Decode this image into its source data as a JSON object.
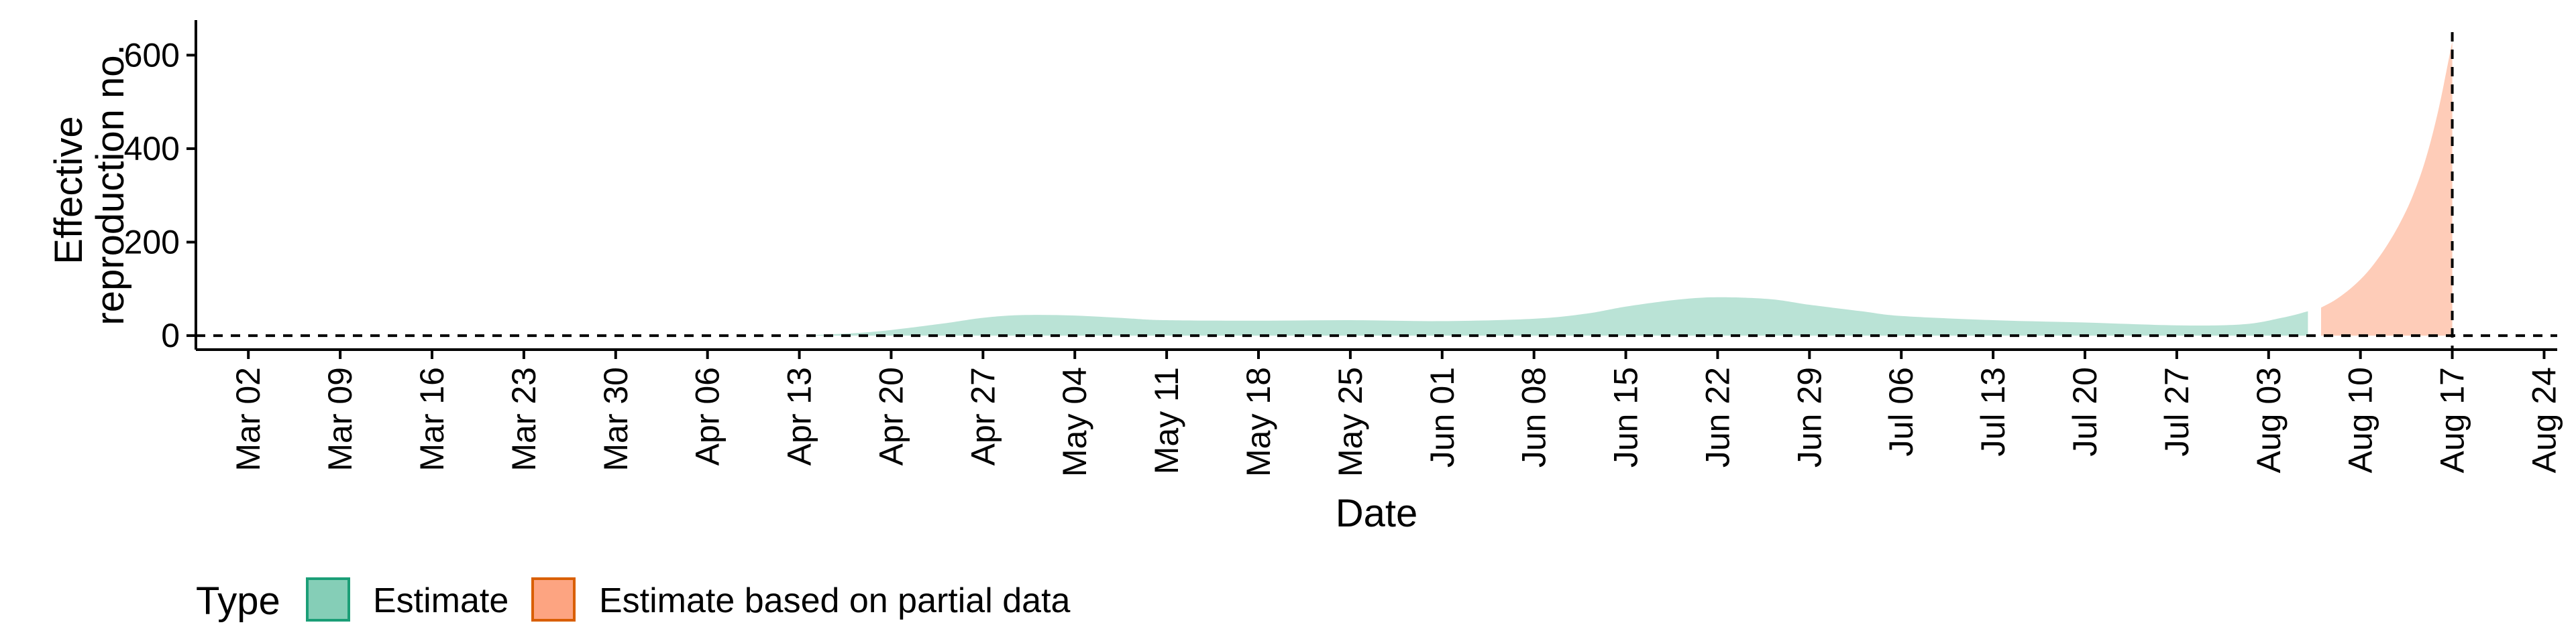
{
  "chart_data": {
    "type": "area",
    "title": "",
    "xlabel": "Date",
    "ylabel": [
      "Effective",
      "reproduction no."
    ],
    "x_ticks": [
      "Mar 02",
      "Mar 09",
      "Mar 16",
      "Mar 23",
      "Mar 30",
      "Apr 06",
      "Apr 13",
      "Apr 20",
      "Apr 27",
      "May 04",
      "May 11",
      "May 18",
      "May 25",
      "Jun 01",
      "Jun 08",
      "Jun 15",
      "Jun 22",
      "Jun 29",
      "Jul 06",
      "Jul 13",
      "Jul 20",
      "Jul 27",
      "Aug 03",
      "Aug 10",
      "Aug 17",
      "Aug 24"
    ],
    "y_ticks": [
      0,
      200,
      400,
      600
    ],
    "xlim": [
      "2020-02-27",
      "2020-08-25"
    ],
    "ylim": [
      -30,
      675
    ],
    "reference_lines": {
      "horizontal_y": 0,
      "vertical_date": "2020-08-17"
    },
    "legend": {
      "title": "Type",
      "position": "bottom-left",
      "items": [
        {
          "label": "Estimate",
          "fill": "#66C2A5",
          "stroke": "#1B9E77"
        },
        {
          "label": "Estimate based on partial data",
          "fill": "#FC8D62",
          "stroke": "#D95F02"
        }
      ]
    },
    "series": [
      {
        "name": "Estimate",
        "fill": "#66C2A5",
        "fill_opacity": 0.45,
        "points": [
          [
            "2020-04-13",
            0
          ],
          [
            "2020-04-17",
            5
          ],
          [
            "2020-04-20",
            12
          ],
          [
            "2020-04-24",
            26
          ],
          [
            "2020-04-27",
            38
          ],
          [
            "2020-04-30",
            44
          ],
          [
            "2020-05-04",
            43
          ],
          [
            "2020-05-08",
            37
          ],
          [
            "2020-05-11",
            33
          ],
          [
            "2020-05-18",
            32
          ],
          [
            "2020-05-25",
            33
          ],
          [
            "2020-06-01",
            31
          ],
          [
            "2020-06-08",
            36
          ],
          [
            "2020-06-12",
            47
          ],
          [
            "2020-06-15",
            62
          ],
          [
            "2020-06-19",
            77
          ],
          [
            "2020-06-22",
            82
          ],
          [
            "2020-06-26",
            78
          ],
          [
            "2020-06-29",
            66
          ],
          [
            "2020-07-03",
            52
          ],
          [
            "2020-07-06",
            42
          ],
          [
            "2020-07-13",
            33
          ],
          [
            "2020-07-20",
            28
          ],
          [
            "2020-07-27",
            22
          ],
          [
            "2020-08-01",
            24
          ],
          [
            "2020-08-04",
            38
          ],
          [
            "2020-08-06",
            52
          ]
        ]
      },
      {
        "name": "Estimate based on partial data",
        "fill": "#FC8D62",
        "fill_opacity": 0.45,
        "points": [
          [
            "2020-08-07",
            60
          ],
          [
            "2020-08-08",
            75
          ],
          [
            "2020-08-09",
            95
          ],
          [
            "2020-08-10",
            120
          ],
          [
            "2020-08-11",
            152
          ],
          [
            "2020-08-12",
            192
          ],
          [
            "2020-08-13",
            240
          ],
          [
            "2020-08-14",
            300
          ],
          [
            "2020-08-15",
            380
          ],
          [
            "2020-08-16",
            490
          ],
          [
            "2020-08-17",
            630
          ]
        ]
      }
    ]
  }
}
